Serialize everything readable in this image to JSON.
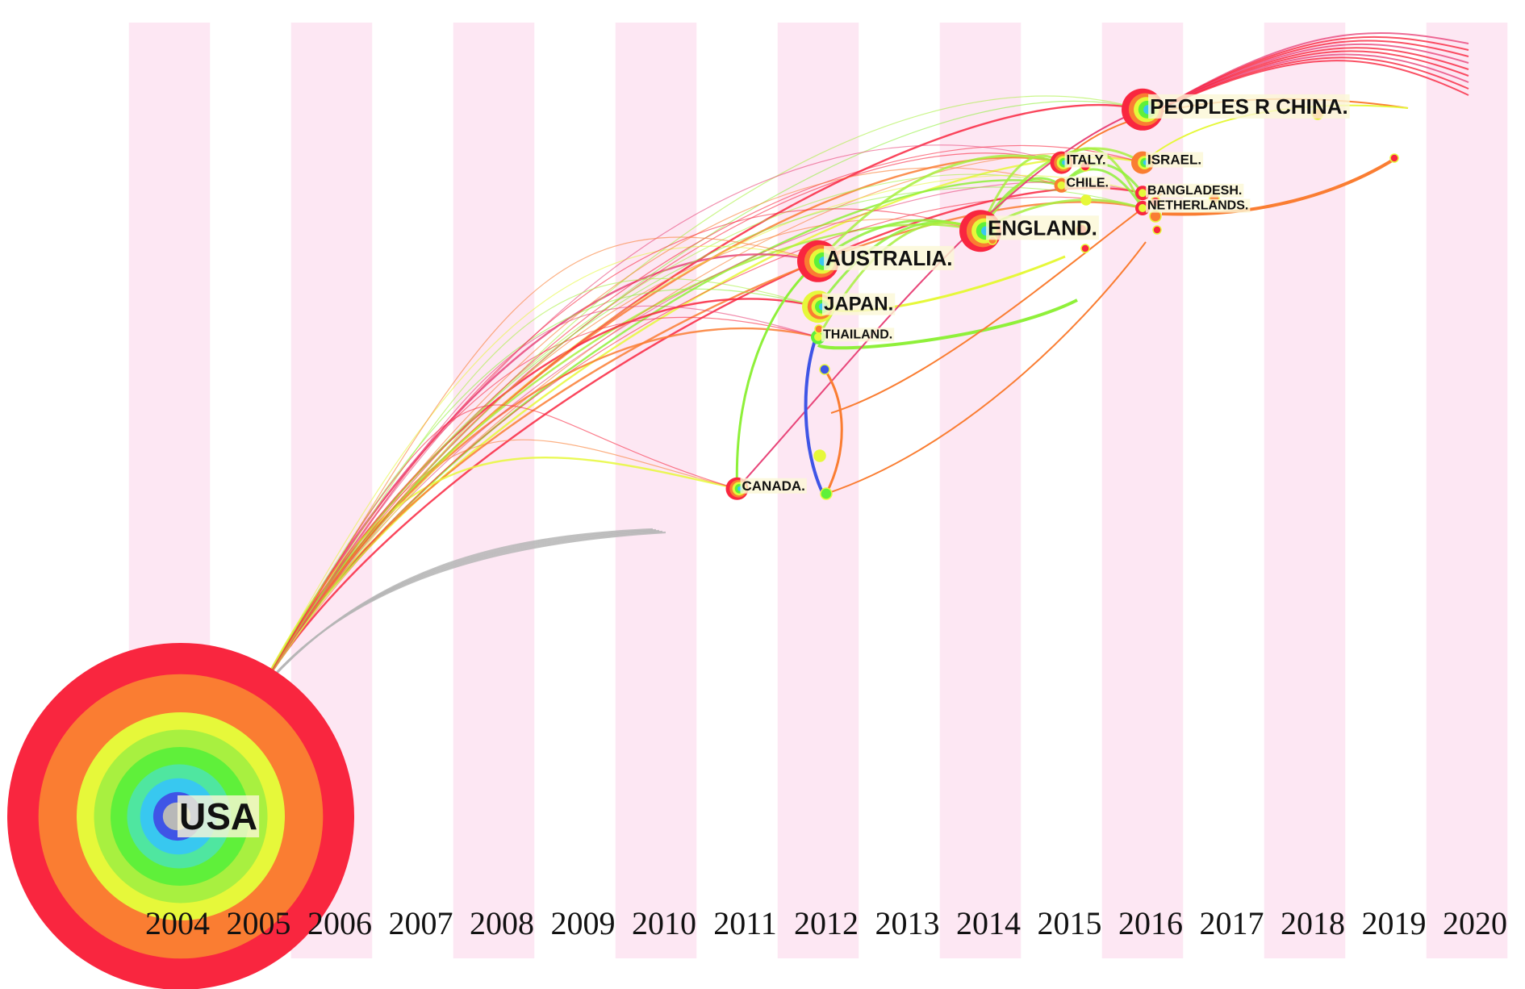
{
  "timeline": {
    "years": [
      "2004",
      "2005",
      "2006",
      "2007",
      "2008",
      "2009",
      "2010",
      "2011",
      "2012",
      "2013",
      "2014",
      "2015",
      "2016",
      "2017",
      "2018",
      "2019",
      "2020"
    ],
    "stripe_color": "#fde7f3"
  },
  "ring_colors": [
    "#f9263f",
    "#fa7d32",
    "#e6f83a",
    "#a8f040",
    "#5ff03a",
    "#4fe6a0",
    "#38c8f0",
    "#3f55e6",
    "#b8b8b8"
  ],
  "nodes": [
    {
      "id": "usa",
      "label": "USA",
      "year": 2004.5,
      "level": 0.0,
      "size": "huge",
      "outer_color": "#f9263f"
    },
    {
      "id": "china",
      "label": "PEOPLES R CHINA.",
      "year": 2016,
      "level": 0.93,
      "size": "large",
      "outer_color": "#f9263f"
    },
    {
      "id": "italy",
      "label": "ITALY.",
      "year": 2015,
      "level": 0.86,
      "size": "small",
      "outer_color": "#f9263f"
    },
    {
      "id": "israel",
      "label": "ISRAEL.",
      "year": 2016,
      "level": 0.86,
      "size": "small",
      "outer_color": "#fa7d32"
    },
    {
      "id": "chile",
      "label": "CHILE.",
      "year": 2015,
      "level": 0.83,
      "size": "tiny",
      "outer_color": "#fa7d32"
    },
    {
      "id": "bangladesh",
      "label": "BANGLADESH.",
      "year": 2016,
      "level": 0.82,
      "size": "tiny",
      "outer_color": "#f9263f"
    },
    {
      "id": "netherlands",
      "label": "NETHERLANDS.",
      "year": 2016,
      "level": 0.8,
      "size": "tiny",
      "outer_color": "#f9263f"
    },
    {
      "id": "england",
      "label": "ENGLAND.",
      "year": 2014,
      "level": 0.77,
      "size": "large",
      "outer_color": "#f9263f"
    },
    {
      "id": "australia",
      "label": "AUSTRALIA.",
      "year": 2012,
      "level": 0.73,
      "size": "large",
      "outer_color": "#f9263f"
    },
    {
      "id": "japan",
      "label": "JAPAN.",
      "year": 2012,
      "level": 0.67,
      "size": "medium",
      "outer_color": "#e6f83a"
    },
    {
      "id": "thailand",
      "label": "THAILAND.",
      "year": 2012,
      "level": 0.63,
      "size": "tiny",
      "outer_color": "#5ff03a"
    },
    {
      "id": "canada",
      "label": "CANADA.",
      "year": 2011,
      "level": 0.43,
      "size": "small",
      "outer_color": "#f9263f"
    }
  ]
}
